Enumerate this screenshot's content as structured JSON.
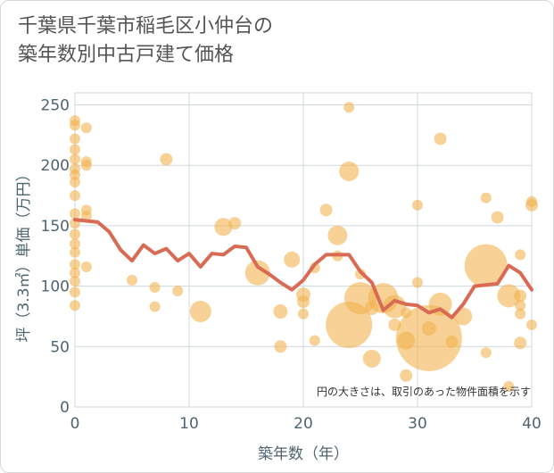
{
  "chart_data": {
    "type": "scatter",
    "title_line1": "千葉県千葉市稲毛区小仲台の",
    "title_line2": "築年数別中古戸建て価格",
    "xlabel": "築年数（年）",
    "ylabel": "坪（3.3㎡）単価（万円）",
    "xlim": [
      0,
      40
    ],
    "ylim": [
      0,
      260
    ],
    "xticks": [
      0,
      10,
      20,
      30,
      40
    ],
    "yticks": [
      0,
      50,
      100,
      150,
      200,
      250
    ],
    "note": "円の大きさは、取引のあった物件面積を示す",
    "colors": {
      "bubble": "#f1b24f",
      "line": "#d96b55",
      "grid": "#cfd8dc"
    },
    "bubbles": [
      {
        "x": 0,
        "y": 237,
        "s": 6
      },
      {
        "x": 0,
        "y": 233,
        "s": 6
      },
      {
        "x": 0,
        "y": 222,
        "s": 6
      },
      {
        "x": 0,
        "y": 213,
        "s": 6
      },
      {
        "x": 0,
        "y": 205,
        "s": 6
      },
      {
        "x": 0,
        "y": 197,
        "s": 6
      },
      {
        "x": 0,
        "y": 192,
        "s": 6
      },
      {
        "x": 0,
        "y": 186,
        "s": 6
      },
      {
        "x": 0,
        "y": 175,
        "s": 6
      },
      {
        "x": 0,
        "y": 160,
        "s": 6
      },
      {
        "x": 0,
        "y": 152,
        "s": 6
      },
      {
        "x": 0,
        "y": 143,
        "s": 6
      },
      {
        "x": 0,
        "y": 135,
        "s": 6
      },
      {
        "x": 0,
        "y": 128,
        "s": 6
      },
      {
        "x": 0,
        "y": 118,
        "s": 6
      },
      {
        "x": 0,
        "y": 111,
        "s": 6
      },
      {
        "x": 0,
        "y": 104,
        "s": 6
      },
      {
        "x": 0,
        "y": 95,
        "s": 6
      },
      {
        "x": 0,
        "y": 84,
        "s": 6
      },
      {
        "x": 1,
        "y": 231,
        "s": 6
      },
      {
        "x": 1,
        "y": 203,
        "s": 6
      },
      {
        "x": 1,
        "y": 200,
        "s": 6
      },
      {
        "x": 1,
        "y": 163,
        "s": 6
      },
      {
        "x": 1,
        "y": 158,
        "s": 6
      },
      {
        "x": 1,
        "y": 116,
        "s": 6
      },
      {
        "x": 5,
        "y": 105,
        "s": 6
      },
      {
        "x": 7,
        "y": 99,
        "s": 6
      },
      {
        "x": 7,
        "y": 83,
        "s": 6
      },
      {
        "x": 8,
        "y": 205,
        "s": 7
      },
      {
        "x": 9,
        "y": 96,
        "s": 6
      },
      {
        "x": 11,
        "y": 79,
        "s": 12
      },
      {
        "x": 13,
        "y": 149,
        "s": 10
      },
      {
        "x": 14,
        "y": 152,
        "s": 7
      },
      {
        "x": 16,
        "y": 111,
        "s": 14
      },
      {
        "x": 18,
        "y": 79,
        "s": 8
      },
      {
        "x": 18,
        "y": 50,
        "s": 7
      },
      {
        "x": 19,
        "y": 122,
        "s": 9
      },
      {
        "x": 20,
        "y": 93,
        "s": 8
      },
      {
        "x": 20,
        "y": 87,
        "s": 7
      },
      {
        "x": 20,
        "y": 77,
        "s": 6
      },
      {
        "x": 21,
        "y": 115,
        "s": 6
      },
      {
        "x": 21,
        "y": 55,
        "s": 6
      },
      {
        "x": 22,
        "y": 163,
        "s": 7
      },
      {
        "x": 23,
        "y": 142,
        "s": 11
      },
      {
        "x": 23,
        "y": 125,
        "s": 6
      },
      {
        "x": 24,
        "y": 248,
        "s": 6
      },
      {
        "x": 24,
        "y": 195,
        "s": 11
      },
      {
        "x": 24,
        "y": 68,
        "s": 26
      },
      {
        "x": 25,
        "y": 90,
        "s": 18
      },
      {
        "x": 25,
        "y": 110,
        "s": 6
      },
      {
        "x": 26,
        "y": 82,
        "s": 8
      },
      {
        "x": 26,
        "y": 40,
        "s": 10
      },
      {
        "x": 27,
        "y": 90,
        "s": 17
      },
      {
        "x": 28,
        "y": 83,
        "s": 13
      },
      {
        "x": 28,
        "y": 68,
        "s": 7
      },
      {
        "x": 29,
        "y": 78,
        "s": 6
      },
      {
        "x": 29,
        "y": 55,
        "s": 10
      },
      {
        "x": 29,
        "y": 26,
        "s": 7
      },
      {
        "x": 30,
        "y": 167,
        "s": 6
      },
      {
        "x": 30,
        "y": 103,
        "s": 6
      },
      {
        "x": 31,
        "y": 57,
        "s": 37
      },
      {
        "x": 31,
        "y": 65,
        "s": 8
      },
      {
        "x": 32,
        "y": 222,
        "s": 7
      },
      {
        "x": 32,
        "y": 85,
        "s": 13
      },
      {
        "x": 33,
        "y": 54,
        "s": 7
      },
      {
        "x": 34,
        "y": 75,
        "s": 10
      },
      {
        "x": 36,
        "y": 173,
        "s": 6
      },
      {
        "x": 36,
        "y": 117,
        "s": 24
      },
      {
        "x": 36,
        "y": 45,
        "s": 6
      },
      {
        "x": 37,
        "y": 157,
        "s": 7
      },
      {
        "x": 38,
        "y": 92,
        "s": 13
      },
      {
        "x": 38,
        "y": 17,
        "s": 6
      },
      {
        "x": 39,
        "y": 126,
        "s": 6
      },
      {
        "x": 39,
        "y": 92,
        "s": 7
      },
      {
        "x": 39,
        "y": 84,
        "s": 6
      },
      {
        "x": 39,
        "y": 77,
        "s": 6
      },
      {
        "x": 39,
        "y": 53,
        "s": 7
      },
      {
        "x": 40,
        "y": 170,
        "s": 6
      },
      {
        "x": 40,
        "y": 167,
        "s": 7
      },
      {
        "x": 40,
        "y": 68,
        "s": 6
      }
    ],
    "line": [
      [
        0,
        155
      ],
      [
        1,
        154
      ],
      [
        2,
        153
      ],
      [
        3,
        145
      ],
      [
        4,
        130
      ],
      [
        5,
        121
      ],
      [
        6,
        134
      ],
      [
        7,
        127
      ],
      [
        8,
        131
      ],
      [
        9,
        121
      ],
      [
        10,
        127
      ],
      [
        11,
        116
      ],
      [
        12,
        127
      ],
      [
        13,
        126
      ],
      [
        14,
        133
      ],
      [
        15,
        132
      ],
      [
        16,
        116
      ],
      [
        17,
        110
      ],
      [
        18,
        103
      ],
      [
        19,
        97
      ],
      [
        20,
        105
      ],
      [
        21,
        118
      ],
      [
        22,
        126
      ],
      [
        23,
        126
      ],
      [
        24,
        126
      ],
      [
        25,
        112
      ],
      [
        26,
        103
      ],
      [
        27,
        80
      ],
      [
        28,
        88
      ],
      [
        29,
        85
      ],
      [
        30,
        84
      ],
      [
        31,
        78
      ],
      [
        32,
        81
      ],
      [
        33,
        74
      ],
      [
        34,
        85
      ],
      [
        35,
        100
      ],
      [
        36,
        101
      ],
      [
        37,
        102
      ],
      [
        38,
        117
      ],
      [
        39,
        111
      ],
      [
        40,
        97
      ]
    ]
  }
}
